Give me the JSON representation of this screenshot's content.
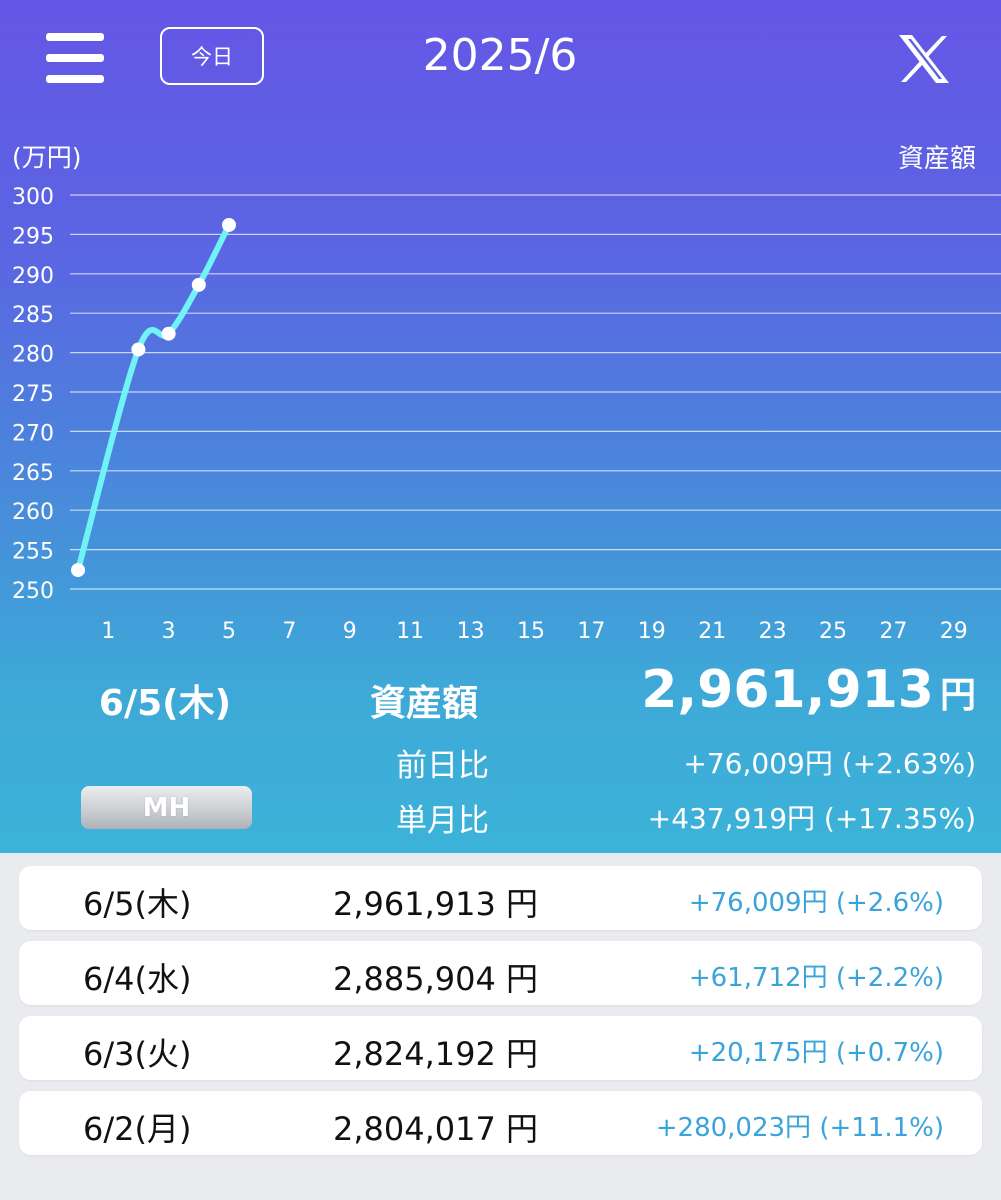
{
  "header": {
    "today_label": "今日",
    "month_title": "2025/6",
    "menu_icon": "hamburger-menu-icon",
    "share_icon": "x-logo-icon"
  },
  "chart_data": {
    "type": "line",
    "unit_label": "(万円)",
    "series_label": "資産額",
    "x_ticks": [
      "1",
      "3",
      "5",
      "7",
      "9",
      "11",
      "13",
      "15",
      "17",
      "19",
      "21",
      "23",
      "25",
      "27",
      "29"
    ],
    "y_ticks": [
      "250",
      "255",
      "260",
      "265",
      "270",
      "275",
      "280",
      "285",
      "290",
      "295",
      "300"
    ],
    "ylim": [
      250,
      300
    ],
    "xlim": [
      0,
      30
    ],
    "grid": true,
    "series": [
      {
        "color": "#6ff3f5",
        "points": [
          [
            0,
            252.4
          ],
          [
            2,
            280.4
          ],
          [
            3,
            282.4
          ],
          [
            4,
            288.6
          ],
          [
            5,
            296.2
          ]
        ]
      }
    ]
  },
  "summary": {
    "date": "6/5(木)",
    "asset_label": "資産額",
    "asset_value": "2,961,913",
    "asset_unit": "円",
    "prev_day_label": "前日比",
    "prev_day_value": "+76,009円 (+2.63%)",
    "month_label": "単月比",
    "month_value": "+437,919円 (+17.35%)",
    "mh_label": "MH"
  },
  "rows": [
    {
      "date": "6/5(木)",
      "value": "2,961,913 円",
      "change": "+76,009円 (+2.6%)"
    },
    {
      "date": "6/4(水)",
      "value": "2,885,904 円",
      "change": "+61,712円 (+2.2%)"
    },
    {
      "date": "6/3(火)",
      "value": "2,824,192 円",
      "change": "+20,175円 (+0.7%)"
    },
    {
      "date": "6/2(月)",
      "value": "2,804,017 円",
      "change": "+280,023円 (+11.1%)"
    }
  ]
}
